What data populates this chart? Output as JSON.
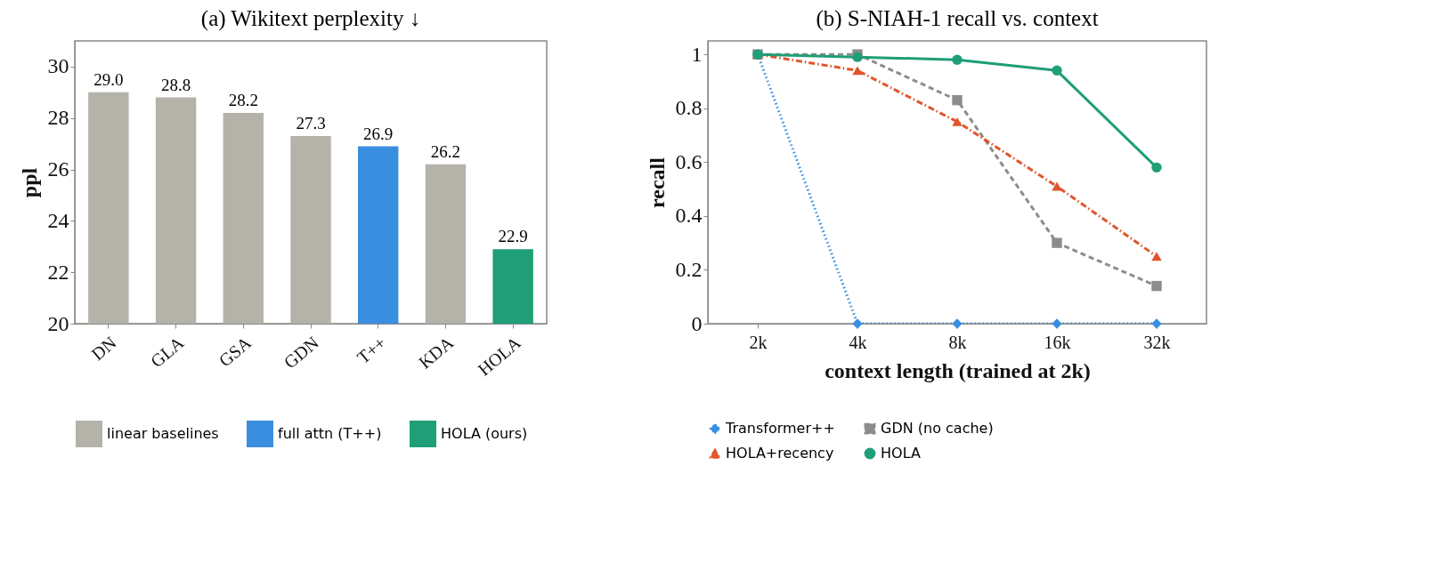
{
  "chart_data": [
    {
      "type": "bar",
      "title": "(a) Wikitext perplexity ↓",
      "ylabel": "ppl",
      "categories": [
        "DN",
        "GLA",
        "GSA",
        "GDN",
        "T++",
        "KDA",
        "HOLA"
      ],
      "series": [
        {
          "name": "linear baselines",
          "color": "#b5b2aa",
          "values": [
            29.0,
            28.8,
            28.2,
            27.3,
            null,
            26.2,
            null
          ],
          "value_labels": [
            "29.0",
            "28.8",
            "28.2",
            "27.3",
            null,
            "26.2",
            null
          ]
        },
        {
          "name": "full attn (T++)",
          "color": "#3a8ee0",
          "values": [
            null,
            null,
            null,
            null,
            26.9,
            null,
            null
          ],
          "value_labels": [
            null,
            null,
            null,
            null,
            "26.9",
            null,
            null
          ]
        },
        {
          "name": "HOLA (ours)",
          "color": "#1f9e78",
          "values": [
            null,
            null,
            null,
            null,
            null,
            null,
            22.9
          ],
          "value_labels": [
            null,
            null,
            null,
            null,
            null,
            null,
            "22.9"
          ]
        }
      ],
      "ylim": [
        20,
        31
      ],
      "yticks": [
        20,
        22,
        24,
        26,
        28,
        30
      ],
      "legend": "bottom",
      "grid": false
    },
    {
      "type": "line",
      "title": "(b) S-NIAH-1 recall vs. context",
      "xlabel": "context length (trained at 2k)",
      "ylabel": "recall",
      "categories": [
        "2k",
        "4k",
        "8k",
        "16k",
        "32k"
      ],
      "series": [
        {
          "name": "Transformer++",
          "color": "#3a8ee0",
          "line_style": "dotted",
          "marker": "diamond",
          "values": [
            1,
            0,
            0,
            0,
            0
          ]
        },
        {
          "name": "GDN (no cache)",
          "color": "#8c8c8c",
          "line_style": "dashed",
          "marker": "square",
          "values": [
            1,
            1,
            0.83,
            0.3,
            0.14
          ]
        },
        {
          "name": "HOLA+recency",
          "color": "#e0552b",
          "line_style": "dashdot",
          "marker": "triangle",
          "values": [
            1,
            0.94,
            0.75,
            0.51,
            0.25
          ]
        },
        {
          "name": "HOLA",
          "color": "#1f9e78",
          "line_style": "solid",
          "marker": "circle",
          "values": [
            1,
            0.99,
            0.98,
            0.94,
            0.58
          ]
        }
      ],
      "ylim": [
        0,
        1.05
      ],
      "yticks": [
        {
          "value": 0,
          "label": "0"
        },
        0.2,
        0.4,
        0.6,
        0.8,
        {
          "value": 1,
          "label": "1"
        }
      ],
      "legend": "bottom",
      "grid": false
    }
  ]
}
